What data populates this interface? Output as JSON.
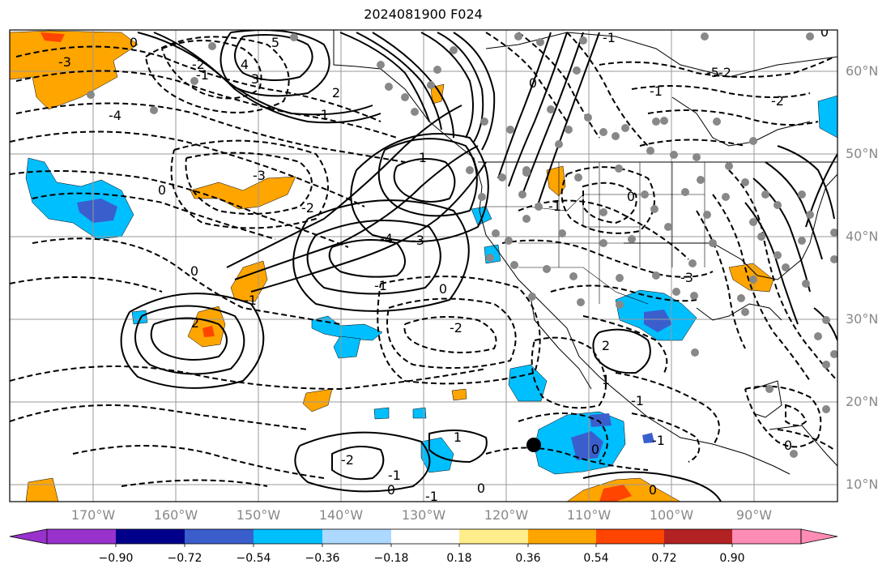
{
  "title": "2024081900 F024",
  "lat_labels": [
    "60°N",
    "50°N",
    "40°N",
    "30°N",
    "20°N",
    "10°N"
  ],
  "lon_labels": [
    "170°W",
    "160°W",
    "150°W",
    "140°W",
    "130°W",
    "120°W",
    "110°W",
    "100°W",
    "90°W"
  ],
  "colorbar": {
    "levels": [
      "−0.90",
      "−0.72",
      "−0.54",
      "−0.36",
      "−0.18",
      "0.18",
      "0.36",
      "0.54",
      "0.72",
      "0.90"
    ],
    "colors": [
      "#9932cc",
      "#00008b",
      "#3a5fcd",
      "#00bfff",
      "#add8ff",
      "#ffffff",
      "#ffec8b",
      "#ffa500",
      "#ff4500",
      "#b22222",
      "#ff8cb4"
    ]
  },
  "contour_labels": [
    "-3",
    "0",
    "-4",
    "-1",
    "5",
    "4",
    "2",
    "-5",
    "3",
    "-2",
    "0",
    "-1",
    "1",
    "-2",
    "-3",
    "0",
    "-2",
    "-4",
    "-3",
    "2",
    "-1",
    "0",
    "-1",
    "-2",
    "0",
    "1",
    "-1",
    "0",
    "-1",
    "2",
    "1",
    "-1",
    "0",
    "-1",
    "0",
    "-1",
    "0",
    "-1",
    "-3",
    "-2",
    "0",
    "-1",
    "-2",
    "0",
    "0"
  ],
  "mslp_marker": "low-center-marker"
}
